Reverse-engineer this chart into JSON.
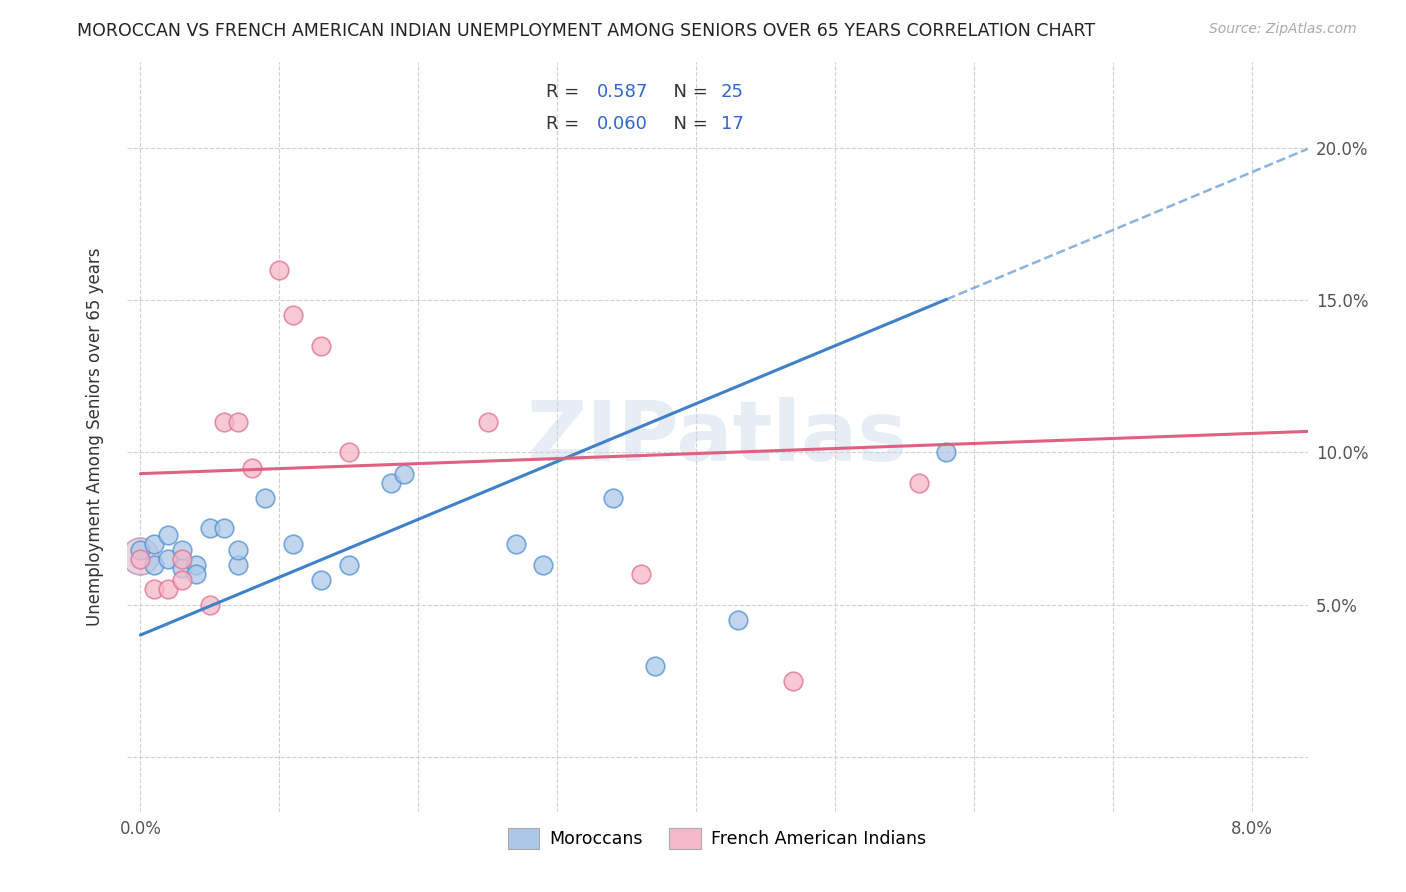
{
  "title": "MOROCCAN VS FRENCH AMERICAN INDIAN UNEMPLOYMENT AMONG SENIORS OVER 65 YEARS CORRELATION CHART",
  "source": "Source: ZipAtlas.com",
  "ylabel": "Unemployment Among Seniors over 65 years",
  "xlim": [
    -0.001,
    0.084
  ],
  "ylim": [
    -0.018,
    0.228
  ],
  "moroccan_R": 0.587,
  "moroccan_N": 25,
  "french_ai_R": 0.06,
  "french_ai_N": 17,
  "moroccan_color": "#adc9e8",
  "moroccan_edge_color": "#5090d0",
  "moroccan_line_color": "#4080c8",
  "french_ai_color": "#f5b8c8",
  "french_ai_edge_color": "#e07090",
  "french_ai_line_color": "#e06080",
  "watermark": "ZIPatlas",
  "legend_text_color": "#3366cc",
  "moroccan_x": [
    0.0,
    0.001,
    0.001,
    0.002,
    0.002,
    0.003,
    0.003,
    0.004,
    0.004,
    0.005,
    0.006,
    0.007,
    0.007,
    0.009,
    0.011,
    0.013,
    0.015,
    0.018,
    0.019,
    0.027,
    0.029,
    0.034,
    0.037,
    0.043,
    0.058
  ],
  "moroccan_y": [
    0.068,
    0.063,
    0.07,
    0.065,
    0.073,
    0.062,
    0.068,
    0.063,
    0.06,
    0.075,
    0.075,
    0.063,
    0.068,
    0.085,
    0.07,
    0.058,
    0.063,
    0.09,
    0.093,
    0.07,
    0.063,
    0.085,
    0.03,
    0.045,
    0.1
  ],
  "french_ai_x": [
    0.0,
    0.001,
    0.002,
    0.003,
    0.003,
    0.005,
    0.006,
    0.007,
    0.008,
    0.01,
    0.011,
    0.013,
    0.015,
    0.025,
    0.036,
    0.047,
    0.056
  ],
  "french_ai_y": [
    0.065,
    0.055,
    0.055,
    0.058,
    0.065,
    0.05,
    0.11,
    0.11,
    0.095,
    0.16,
    0.145,
    0.135,
    0.1,
    0.11,
    0.06,
    0.025,
    0.09
  ],
  "moroccan_line_intercept": 0.04,
  "moroccan_line_slope": 1.9,
  "moroccan_line_solid_end": 0.058,
  "french_line_intercept": 0.093,
  "french_line_slope": 0.165,
  "xtick_positions": [
    0.0,
    0.01,
    0.02,
    0.03,
    0.04,
    0.05,
    0.06,
    0.07,
    0.08
  ],
  "xtick_labels": [
    "0.0%",
    "",
    "",
    "",
    "",
    "",
    "",
    "",
    "8.0%"
  ],
  "ytick_positions": [
    0.0,
    0.05,
    0.1,
    0.15,
    0.2
  ],
  "ytick_labels_right": [
    "",
    "5.0%",
    "10.0%",
    "15.0%",
    "20.0%"
  ],
  "grid_color": "#d0d0d0",
  "axis_label_color": "#555555",
  "title_color": "#222222"
}
